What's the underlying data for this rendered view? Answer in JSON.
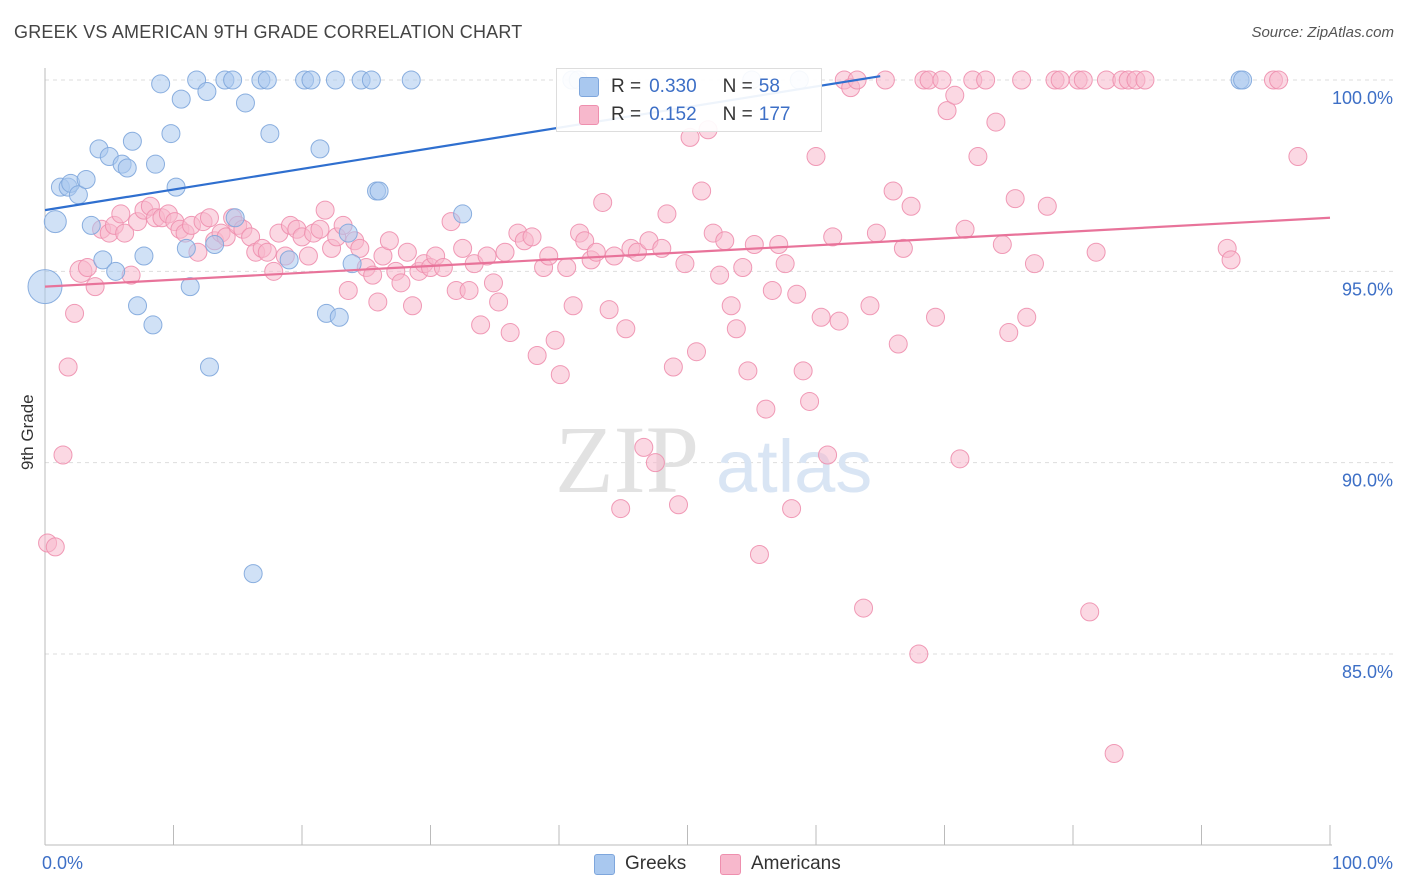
{
  "title": "GREEK VS AMERICAN 9TH GRADE CORRELATION CHART",
  "source": "Source: ZipAtlas.com",
  "watermark": {
    "zip": "ZIP",
    "atlas": "atlas"
  },
  "legend_top": {
    "rows": [
      {
        "r_label": "R = ",
        "r_value": "0.330",
        "n_label": "N = ",
        "n_value": "58"
      },
      {
        "r_label": "R = ",
        "r_value": "0.152",
        "n_label": "N = ",
        "n_value": "177"
      }
    ]
  },
  "legend_bottom": {
    "greeks": "Greeks",
    "americans": "Americans"
  },
  "colors": {
    "greeks_fill": "#a9c8ef",
    "greeks_stroke": "#7ea6dc",
    "greeks_line": "#2f6fcf",
    "americans_fill": "#f7b8cc",
    "americans_stroke": "#ee8fae",
    "americans_line": "#e8739a",
    "tick_label": "#3d6fc6",
    "grid": "#dddddd"
  },
  "chart_data": {
    "type": "scatter",
    "title": "GREEK VS AMERICAN 9TH GRADE CORRELATION CHART",
    "xlabel": "",
    "ylabel": "9th Grade",
    "xlim": [
      0,
      100
    ],
    "ylim": [
      80.5,
      100.8
    ],
    "x_tick_labels": [
      "0.0%",
      "100.0%"
    ],
    "y_ticks": [
      85.0,
      90.0,
      95.0,
      100.0
    ],
    "y_tick_labels": [
      "85.0%",
      "90.0%",
      "95.0%",
      "100.0%"
    ],
    "grid": true,
    "series": [
      {
        "name": "Greeks",
        "r": 0.33,
        "n": 58,
        "trend": {
          "x": [
            0,
            65
          ],
          "y": [
            96.6,
            100.1
          ]
        },
        "points": [
          [
            0.0,
            94.6,
            2
          ],
          [
            0.8,
            96.3,
            1
          ],
          [
            1.2,
            97.2,
            0
          ],
          [
            1.8,
            97.2,
            0
          ],
          [
            2.0,
            97.3,
            0
          ],
          [
            2.6,
            97.0,
            0
          ],
          [
            3.2,
            97.4,
            0
          ],
          [
            3.6,
            96.2,
            0
          ],
          [
            4.2,
            98.2,
            0
          ],
          [
            4.5,
            95.3,
            0
          ],
          [
            5.0,
            98.0,
            0
          ],
          [
            5.5,
            95.0,
            0
          ],
          [
            6.0,
            97.8,
            0
          ],
          [
            6.4,
            97.7,
            0
          ],
          [
            6.8,
            98.4,
            0
          ],
          [
            7.2,
            94.1,
            0
          ],
          [
            7.7,
            95.4,
            0
          ],
          [
            8.4,
            93.6,
            0
          ],
          [
            8.6,
            97.8,
            0
          ],
          [
            9.0,
            99.9,
            0
          ],
          [
            9.8,
            98.6,
            0
          ],
          [
            10.2,
            97.2,
            0
          ],
          [
            10.6,
            99.5,
            0
          ],
          [
            11.0,
            95.6,
            0
          ],
          [
            11.3,
            94.6,
            0
          ],
          [
            11.8,
            100.0,
            0
          ],
          [
            12.6,
            99.7,
            0
          ],
          [
            12.8,
            92.5,
            0
          ],
          [
            13.2,
            95.7,
            0
          ],
          [
            14.0,
            100.0,
            0
          ],
          [
            14.6,
            100.0,
            0
          ],
          [
            14.8,
            96.4,
            0
          ],
          [
            15.6,
            99.4,
            0
          ],
          [
            16.2,
            87.1,
            0
          ],
          [
            16.8,
            100.0,
            0
          ],
          [
            17.3,
            100.0,
            0
          ],
          [
            17.5,
            98.6,
            0
          ],
          [
            19.0,
            95.3,
            0
          ],
          [
            20.2,
            100.0,
            0
          ],
          [
            20.7,
            100.0,
            0
          ],
          [
            21.4,
            98.2,
            0
          ],
          [
            21.9,
            93.9,
            0
          ],
          [
            22.6,
            100.0,
            0
          ],
          [
            22.9,
            93.8,
            0
          ],
          [
            23.6,
            96.0,
            0
          ],
          [
            23.9,
            95.2,
            0
          ],
          [
            24.6,
            100.0,
            0
          ],
          [
            25.4,
            100.0,
            0
          ],
          [
            25.8,
            97.1,
            0
          ],
          [
            26.0,
            97.1,
            0
          ],
          [
            28.5,
            100.0,
            0
          ],
          [
            32.5,
            96.5,
            0
          ],
          [
            41.0,
            100.0,
            0
          ],
          [
            41.5,
            100.0,
            0
          ],
          [
            55.0,
            100.0,
            0
          ],
          [
            58.7,
            100.0,
            0
          ],
          [
            93.0,
            100.0,
            0
          ],
          [
            93.2,
            100.0,
            0
          ]
        ]
      },
      {
        "name": "Americans",
        "r": 0.152,
        "n": 177,
        "trend": {
          "x": [
            0,
            100
          ],
          "y": [
            94.6,
            96.4
          ]
        },
        "points": [
          [
            0.2,
            87.9,
            0
          ],
          [
            0.8,
            87.8,
            0
          ],
          [
            1.4,
            90.2,
            0
          ],
          [
            1.8,
            92.5,
            0
          ],
          [
            2.3,
            93.9,
            0
          ],
          [
            2.8,
            95.0,
            1
          ],
          [
            3.3,
            95.1,
            0
          ],
          [
            3.9,
            94.6,
            0
          ],
          [
            4.4,
            96.1,
            0
          ],
          [
            5.0,
            96.0,
            0
          ],
          [
            5.4,
            96.2,
            0
          ],
          [
            5.9,
            96.5,
            0
          ],
          [
            6.2,
            96.0,
            0
          ],
          [
            6.7,
            94.9,
            0
          ],
          [
            7.2,
            96.3,
            0
          ],
          [
            7.7,
            96.6,
            0
          ],
          [
            8.2,
            96.7,
            0
          ],
          [
            8.6,
            96.4,
            0
          ],
          [
            9.1,
            96.4,
            0
          ],
          [
            9.6,
            96.5,
            0
          ],
          [
            10.1,
            96.3,
            0
          ],
          [
            10.5,
            96.1,
            0
          ],
          [
            10.9,
            96.0,
            0
          ],
          [
            11.4,
            96.2,
            0
          ],
          [
            11.9,
            95.5,
            0
          ],
          [
            12.3,
            96.3,
            0
          ],
          [
            12.8,
            96.4,
            0
          ],
          [
            13.2,
            95.8,
            0
          ],
          [
            13.7,
            96.0,
            0
          ],
          [
            14.1,
            95.9,
            0
          ],
          [
            14.6,
            96.4,
            0
          ],
          [
            15.0,
            96.2,
            0
          ],
          [
            15.4,
            96.1,
            0
          ],
          [
            16.0,
            95.9,
            0
          ],
          [
            16.4,
            95.5,
            0
          ],
          [
            16.9,
            95.6,
            0
          ],
          [
            17.3,
            95.5,
            0
          ],
          [
            17.8,
            95.0,
            0
          ],
          [
            18.2,
            96.0,
            0
          ],
          [
            18.7,
            95.4,
            0
          ],
          [
            19.1,
            96.2,
            0
          ],
          [
            19.6,
            96.1,
            0
          ],
          [
            20.0,
            95.9,
            0
          ],
          [
            20.5,
            95.4,
            0
          ],
          [
            20.9,
            96.0,
            0
          ],
          [
            21.4,
            96.1,
            0
          ],
          [
            21.8,
            96.6,
            0
          ],
          [
            22.3,
            95.6,
            0
          ],
          [
            22.7,
            95.9,
            0
          ],
          [
            23.2,
            96.2,
            0
          ],
          [
            23.6,
            94.5,
            0
          ],
          [
            24.1,
            95.8,
            0
          ],
          [
            24.5,
            95.6,
            0
          ],
          [
            25.0,
            95.1,
            0
          ],
          [
            25.5,
            94.9,
            0
          ],
          [
            25.9,
            94.2,
            0
          ],
          [
            26.3,
            95.4,
            0
          ],
          [
            26.8,
            95.8,
            0
          ],
          [
            27.3,
            95.0,
            0
          ],
          [
            27.7,
            94.7,
            0
          ],
          [
            28.2,
            95.5,
            0
          ],
          [
            28.6,
            94.1,
            0
          ],
          [
            29.1,
            95.0,
            0
          ],
          [
            29.5,
            95.2,
            0
          ],
          [
            30.0,
            95.1,
            0
          ],
          [
            30.4,
            95.4,
            0
          ],
          [
            31.0,
            95.1,
            0
          ],
          [
            31.6,
            96.3,
            0
          ],
          [
            32.0,
            94.5,
            0
          ],
          [
            32.5,
            95.6,
            0
          ],
          [
            33.0,
            94.5,
            0
          ],
          [
            33.4,
            95.2,
            0
          ],
          [
            33.9,
            93.6,
            0
          ],
          [
            34.4,
            95.4,
            0
          ],
          [
            34.9,
            94.7,
            0
          ],
          [
            35.3,
            94.2,
            0
          ],
          [
            35.8,
            95.5,
            0
          ],
          [
            36.2,
            93.4,
            0
          ],
          [
            36.8,
            96.0,
            0
          ],
          [
            37.3,
            95.8,
            0
          ],
          [
            37.9,
            95.9,
            0
          ],
          [
            38.3,
            92.8,
            0
          ],
          [
            38.8,
            95.1,
            0
          ],
          [
            39.2,
            95.4,
            0
          ],
          [
            39.7,
            93.2,
            0
          ],
          [
            40.1,
            92.3,
            0
          ],
          [
            40.6,
            95.1,
            0
          ],
          [
            41.1,
            94.1,
            0
          ],
          [
            41.6,
            96.0,
            0
          ],
          [
            42.0,
            95.8,
            0
          ],
          [
            42.5,
            95.3,
            0
          ],
          [
            42.9,
            95.5,
            0
          ],
          [
            43.4,
            96.8,
            0
          ],
          [
            43.9,
            94.0,
            0
          ],
          [
            44.3,
            95.4,
            0
          ],
          [
            44.8,
            88.8,
            0
          ],
          [
            45.2,
            93.5,
            0
          ],
          [
            45.6,
            95.6,
            0
          ],
          [
            46.1,
            95.5,
            0
          ],
          [
            46.6,
            90.4,
            0
          ],
          [
            47.0,
            95.8,
            0
          ],
          [
            47.5,
            90.0,
            0
          ],
          [
            48.0,
            95.6,
            0
          ],
          [
            48.4,
            96.5,
            0
          ],
          [
            48.9,
            92.5,
            0
          ],
          [
            49.3,
            88.9,
            0
          ],
          [
            49.8,
            95.2,
            0
          ],
          [
            50.2,
            98.5,
            0
          ],
          [
            50.7,
            92.9,
            0
          ],
          [
            51.1,
            97.1,
            0
          ],
          [
            51.6,
            98.7,
            0
          ],
          [
            52.0,
            96.0,
            0
          ],
          [
            52.5,
            94.9,
            0
          ],
          [
            52.9,
            95.8,
            0
          ],
          [
            53.4,
            94.1,
            0
          ],
          [
            53.8,
            93.5,
            0
          ],
          [
            54.3,
            95.1,
            0
          ],
          [
            54.7,
            92.4,
            0
          ],
          [
            55.2,
            95.7,
            0
          ],
          [
            55.6,
            87.6,
            0
          ],
          [
            56.1,
            91.4,
            0
          ],
          [
            56.6,
            94.5,
            0
          ],
          [
            57.1,
            95.7,
            0
          ],
          [
            57.6,
            95.2,
            0
          ],
          [
            58.1,
            88.8,
            0
          ],
          [
            58.5,
            94.4,
            0
          ],
          [
            59.0,
            92.4,
            0
          ],
          [
            59.5,
            91.6,
            0
          ],
          [
            60.0,
            98.0,
            0
          ],
          [
            60.4,
            93.8,
            0
          ],
          [
            60.9,
            90.2,
            0
          ],
          [
            61.3,
            95.9,
            0
          ],
          [
            61.8,
            93.7,
            0
          ],
          [
            62.2,
            100.0,
            0
          ],
          [
            62.7,
            99.8,
            0
          ],
          [
            63.2,
            100.0,
            0
          ],
          [
            63.7,
            86.2,
            0
          ],
          [
            64.2,
            94.1,
            0
          ],
          [
            64.7,
            96.0,
            0
          ],
          [
            65.4,
            100.0,
            0
          ],
          [
            66.0,
            97.1,
            0
          ],
          [
            66.4,
            93.1,
            0
          ],
          [
            66.8,
            95.6,
            0
          ],
          [
            67.4,
            96.7,
            0
          ],
          [
            68.0,
            85.0,
            0
          ],
          [
            68.4,
            100.0,
            0
          ],
          [
            68.8,
            100.0,
            0
          ],
          [
            69.3,
            93.8,
            0
          ],
          [
            69.8,
            100.0,
            0
          ],
          [
            70.2,
            99.2,
            0
          ],
          [
            70.8,
            99.6,
            0
          ],
          [
            71.2,
            90.1,
            0
          ],
          [
            71.6,
            96.1,
            0
          ],
          [
            72.2,
            100.0,
            0
          ],
          [
            72.6,
            98.0,
            0
          ],
          [
            73.2,
            100.0,
            0
          ],
          [
            74.0,
            98.9,
            0
          ],
          [
            74.5,
            95.7,
            0
          ],
          [
            75.0,
            93.4,
            0
          ],
          [
            75.5,
            96.9,
            0
          ],
          [
            76.0,
            100.0,
            0
          ],
          [
            76.4,
            93.8,
            0
          ],
          [
            77.0,
            95.2,
            0
          ],
          [
            78.0,
            96.7,
            0
          ],
          [
            78.6,
            100.0,
            0
          ],
          [
            79.0,
            100.0,
            0
          ],
          [
            80.4,
            100.0,
            0
          ],
          [
            80.8,
            100.0,
            0
          ],
          [
            81.3,
            86.1,
            0
          ],
          [
            81.8,
            95.5,
            0
          ],
          [
            82.6,
            100.0,
            0
          ],
          [
            83.2,
            82.4,
            0
          ],
          [
            83.8,
            100.0,
            0
          ],
          [
            84.3,
            100.0,
            0
          ],
          [
            84.9,
            100.0,
            0
          ],
          [
            85.6,
            100.0,
            0
          ],
          [
            92.0,
            95.6,
            0
          ],
          [
            92.3,
            95.3,
            0
          ],
          [
            95.6,
            100.0,
            0
          ],
          [
            96.0,
            100.0,
            0
          ],
          [
            97.5,
            98.0,
            0
          ]
        ]
      }
    ]
  }
}
